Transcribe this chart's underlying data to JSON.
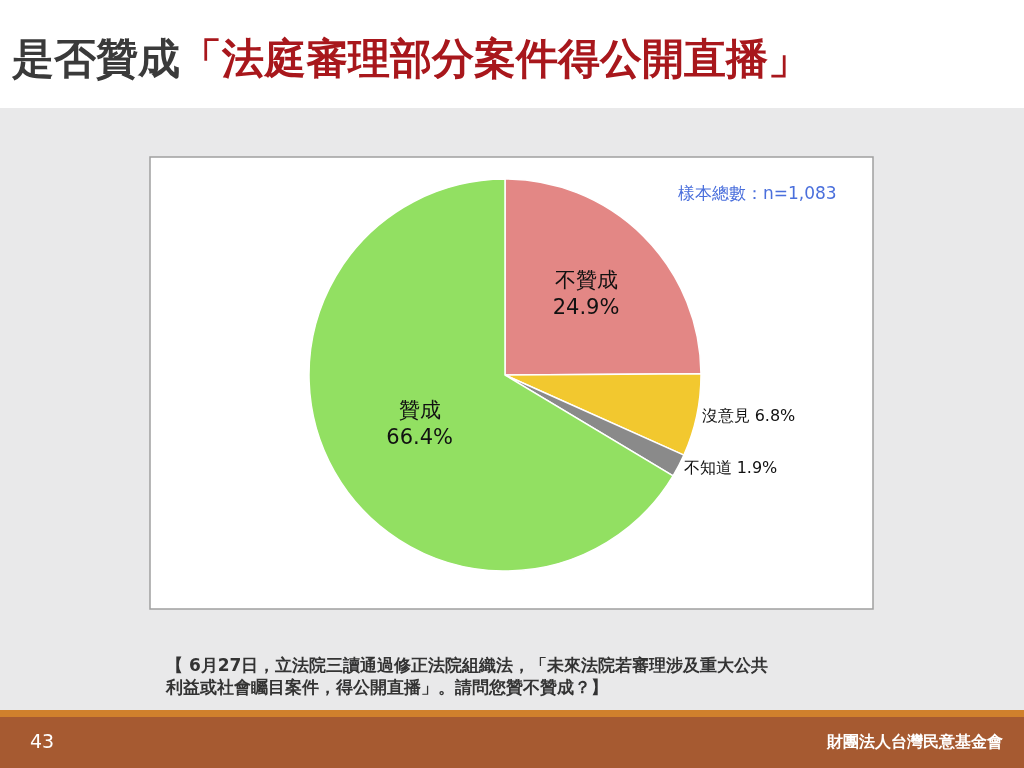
{
  "chart_data": {
    "type": "pie",
    "title": "是否贊成「法庭審理部分案件得公開直播」",
    "categories": [
      "不贊成",
      "沒意見",
      "不知道",
      "贊成"
    ],
    "values": [
      24.9,
      6.8,
      1.9,
      66.4
    ],
    "value_labels": [
      "24.9%",
      "6.8%",
      "1.9%",
      "66.4%"
    ],
    "colors": [
      "#e38785",
      "#f2c82f",
      "#8a8a8a",
      "#92e062"
    ],
    "annotations": [
      "樣本總數：n=1,083",
      "【 6月27日，立法院三讀通過修正法院組織法，「未來法院若審理涉及重大公共利益或社會矚目案件，得公開直播」。請問您贊不贊成？】",
      "43",
      "財團法人台灣民意基金會"
    ]
  }
}
